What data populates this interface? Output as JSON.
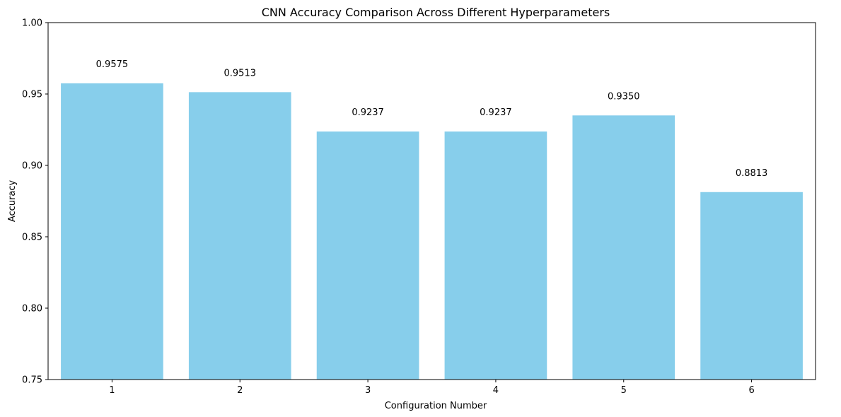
{
  "chart_data": {
    "type": "bar",
    "title": "CNN Accuracy Comparison Across Different Hyperparameters",
    "xlabel": "Configuration Number",
    "ylabel": "Accuracy",
    "categories": [
      "1",
      "2",
      "3",
      "4",
      "5",
      "6"
    ],
    "values": [
      0.9575,
      0.9513,
      0.9237,
      0.9237,
      0.935,
      0.8813
    ],
    "data_labels": [
      "0.9575",
      "0.9513",
      "0.9237",
      "0.9237",
      "0.9350",
      "0.8813"
    ],
    "ylim": [
      0.75,
      1.0
    ],
    "yticks": [
      0.75,
      0.8,
      0.85,
      0.9,
      0.95,
      1.0
    ],
    "ytick_labels": [
      "0.75",
      "0.80",
      "0.85",
      "0.90",
      "0.95",
      "1.00"
    ],
    "bar_color": "#87CEEB",
    "grid": false,
    "legend": "none"
  }
}
